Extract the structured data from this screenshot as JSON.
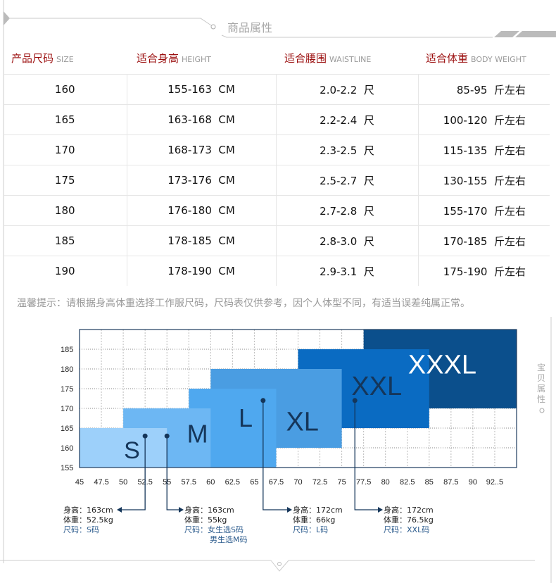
{
  "section_title": "商品属性",
  "side_label": "宝贝属性",
  "table": {
    "headers": [
      {
        "cn": "产品尺码",
        "en": "SIZE"
      },
      {
        "cn": "适合身高",
        "en": "HEIGHT"
      },
      {
        "cn": "适合腰围",
        "en": "WAISTLINE"
      },
      {
        "cn": "适合体重",
        "en": "BODY WEIGHT"
      }
    ],
    "rows": [
      [
        "160",
        "155-163  CM",
        "2.0-2.2  尺",
        "85-95  斤左右"
      ],
      [
        "165",
        "163-168  CM",
        "2.2-2.4  尺",
        "100-120  斤左右"
      ],
      [
        "170",
        "168-173  CM",
        "2.3-2.5  尺",
        "115-135  斤左右"
      ],
      [
        "175",
        "173-176  CM",
        "2.5-2.7  尺",
        "130-155  斤左右"
      ],
      [
        "180",
        "176-180  CM",
        "2.7-2.8  尺",
        "155-170  斤左右"
      ],
      [
        "185",
        "178-185  CM",
        "2.8-3.0  尺",
        "170-185  斤左右"
      ],
      [
        "190",
        "178-190  CM",
        "2.9-3.1  尺",
        "175-190  斤左右"
      ]
    ]
  },
  "tip": "温馨提示：请根据身高体重选择工作服尺码，尺码表仅供参考，因个人体型不同，有适当误差纯属正常。",
  "chart_data": {
    "type": "area",
    "xlim": [
      45,
      95
    ],
    "ylim": [
      155,
      190
    ],
    "x_ticks": [
      "45",
      "47.5",
      "50",
      "52.5",
      "55",
      "57.5",
      "60",
      "62.5",
      "65",
      "67.5",
      "70",
      "72.5",
      "75",
      "77.5",
      "80",
      "82.5",
      "85",
      "87.5",
      "90",
      "92..5"
    ],
    "y_ticks": [
      "155",
      "160",
      "165",
      "170",
      "175",
      "180",
      "185"
    ],
    "grid": true,
    "regions": [
      {
        "label": "XXXL",
        "x": [
          77.5,
          95
        ],
        "y": [
          170,
          190
        ],
        "color": "#0b4f8c",
        "text_color": "#ffffff"
      },
      {
        "label": "XXL",
        "x": [
          70,
          85
        ],
        "y": [
          165,
          185
        ],
        "color": "#0a6bc2",
        "text_color": "#15365a"
      },
      {
        "label": "XL",
        "x": [
          60,
          75
        ],
        "y": [
          160,
          180
        ],
        "color": "#4a9de2",
        "text_color": "#15365a"
      },
      {
        "label": "L",
        "x": [
          57.5,
          67.5
        ],
        "y": [
          155,
          175
        ],
        "color": "#4fa8ef",
        "text_color": "#15365a"
      },
      {
        "label": "M",
        "x": [
          50,
          60
        ],
        "y": [
          155,
          170
        ],
        "color": "#6db7f3",
        "text_color": "#15365a"
      },
      {
        "label": "S",
        "x": [
          45,
          55
        ],
        "y": [
          155,
          165
        ],
        "color": "#9dd0fa",
        "text_color": "#15365a"
      }
    ],
    "examples": [
      {
        "weight": 52.5,
        "height": 163,
        "lines": [
          "身高：163cm",
          "体重：52.5kg"
        ],
        "size_lines": [
          "尺码：S码"
        ]
      },
      {
        "weight": 55,
        "height": 163,
        "lines": [
          "身高：163cm",
          "体重：55kg"
        ],
        "size_lines": [
          "尺码：女生选S码",
          "男生选M码"
        ]
      },
      {
        "weight": 66,
        "height": 172,
        "lines": [
          "身高：172cm",
          "体重：66kg"
        ],
        "size_lines": [
          "尺码：L码"
        ]
      },
      {
        "weight": 76.5,
        "height": 172,
        "lines": [
          "身高：172cm",
          "体重：76.5kg"
        ],
        "size_lines": [
          "尺码：XXL码"
        ]
      }
    ]
  }
}
